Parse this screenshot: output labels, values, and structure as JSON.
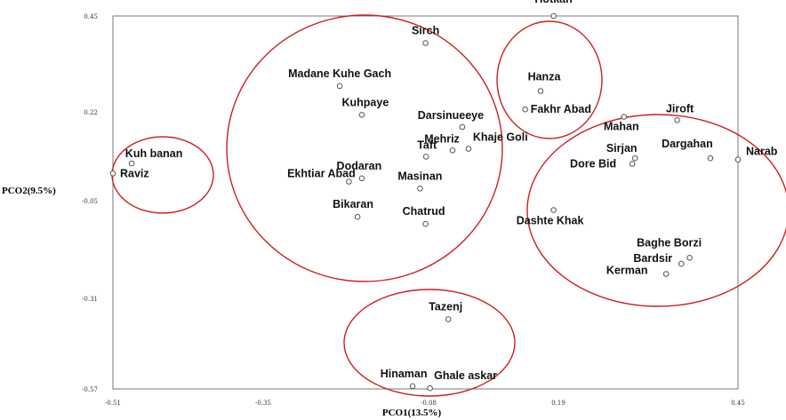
{
  "chart_data": {
    "type": "scatter",
    "title": "",
    "xlabel": "PCO1(13.5%)",
    "ylabel": "PCO2(9.5%)",
    "xlim": [
      -0.51,
      0.45
    ],
    "ylim": [
      -0.57,
      0.45
    ],
    "x_ticks": [
      {
        "value": -0.51,
        "label": "-0.51"
      },
      {
        "value": -0.35,
        "label": "-0.35"
      },
      {
        "value": -0.08,
        "label": "-0.08"
      },
      {
        "value": 0.19,
        "label": "0.19"
      },
      {
        "value": 0.45,
        "label": "0.45"
      }
    ],
    "y_ticks": [
      {
        "value": 0.45,
        "label": "0.45"
      },
      {
        "value": 0.22,
        "label": "0.22"
      },
      {
        "value": -0.05,
        "label": "-0.05"
      },
      {
        "value": -0.31,
        "label": "-0.31"
      },
      {
        "value": -0.57,
        "label": "-0.57"
      }
    ],
    "grid": false,
    "marker_color": "#555555",
    "cluster_color": "#cc1f1f",
    "points": [
      {
        "label": "Hotkan",
        "x": 0.18,
        "y": 0.45
      },
      {
        "label": "Hanza",
        "x": 0.153,
        "y": 0.27
      },
      {
        "label": "Fakhr Abad",
        "x": 0.121,
        "y": 0.226
      },
      {
        "label": "Sirch",
        "x": -0.085,
        "y": 0.385
      },
      {
        "label": "Madane Kuhe Gach",
        "x": -0.225,
        "y": 0.282
      },
      {
        "label": "Kuhpaye",
        "x": -0.189,
        "y": 0.211
      },
      {
        "label": "Darsinueeye",
        "x": -0.01,
        "y": 0.174
      },
      {
        "label": "Mehriz",
        "x": -0.03,
        "y": 0.103
      },
      {
        "label": "Khaje Goli",
        "x": 0.003,
        "y": 0.108
      },
      {
        "label": "Taft",
        "x": -0.084,
        "y": 0.084
      },
      {
        "label": "Dodaran",
        "x": -0.189,
        "y": 0.018
      },
      {
        "label": "Ekhtiar Abad",
        "x": -0.21,
        "y": 0.008
      },
      {
        "label": "Masinan",
        "x": -0.094,
        "y": -0.013
      },
      {
        "label": "Bikaran",
        "x": -0.196,
        "y": -0.093
      },
      {
        "label": "Chatrud",
        "x": -0.085,
        "y": -0.112
      },
      {
        "label": "Kuh banan",
        "x": -0.49,
        "y": 0.063
      },
      {
        "label": "Raviz",
        "x": -0.51,
        "y": 0.033
      },
      {
        "label": "Tazenj",
        "x": -0.039,
        "y": -0.37
      },
      {
        "label": "Hinaman",
        "x": -0.106,
        "y": -0.562
      },
      {
        "label": "Ghale askar",
        "x": -0.077,
        "y": -0.568
      },
      {
        "label": "Mahan",
        "x": 0.285,
        "y": 0.205
      },
      {
        "label": "Jiroft",
        "x": 0.362,
        "y": 0.195
      },
      {
        "label": "Sirjan",
        "x": 0.301,
        "y": 0.079
      },
      {
        "label": "Dore Bid",
        "x": 0.297,
        "y": 0.062
      },
      {
        "label": "Dargahan",
        "x": 0.41,
        "y": 0.079
      },
      {
        "label": "Narab",
        "x": 0.45,
        "y": 0.075
      },
      {
        "label": "Dashte Khak",
        "x": 0.18,
        "y": -0.075
      },
      {
        "label": "Baghe Borzi",
        "x": 0.38,
        "y": -0.202
      },
      {
        "label": "Bardsir",
        "x": 0.368,
        "y": -0.218
      },
      {
        "label": "Kerman",
        "x": 0.346,
        "y": -0.245
      }
    ]
  }
}
